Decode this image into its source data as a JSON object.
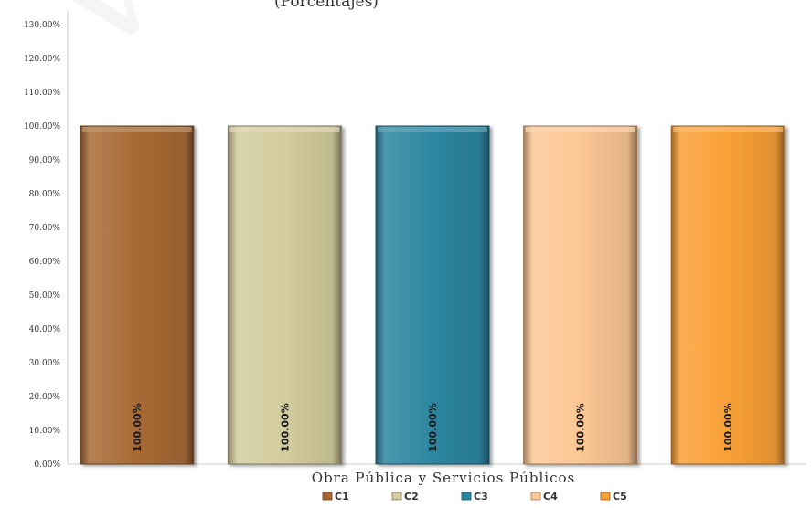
{
  "chart_data": {
    "type": "bar",
    "subtitle": "(Porcentajes)",
    "xlabel": "Obra Pública y Servicios Públicos",
    "ylabel": "",
    "ylim": [
      0,
      130
    ],
    "y_ticks": [
      "0.00%",
      "10.00%",
      "20.00%",
      "30.00%",
      "40.00%",
      "50.00%",
      "60.00%",
      "70.00%",
      "80.00%",
      "90.00%",
      "100.00%",
      "110.00%",
      "120.00%",
      "130.00%"
    ],
    "categories": [
      "C1",
      "C2",
      "C3",
      "C4",
      "C5"
    ],
    "values": [
      100.0,
      100.0,
      100.0,
      100.0,
      100.0
    ],
    "data_labels": [
      "100.00%",
      "100.00%",
      "100.00%",
      "100.00%",
      "100.00%"
    ],
    "colors": [
      "#a86a35",
      "#d3cc9e",
      "#2c86a0",
      "#fbc794",
      "#f9a037"
    ],
    "legend_position": "bottom",
    "grid": false
  }
}
